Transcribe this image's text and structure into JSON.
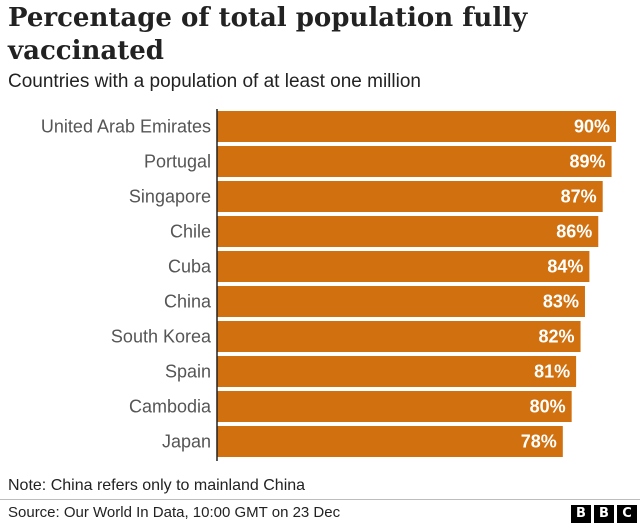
{
  "header": {
    "title": "Percentage of total population fully vaccinated",
    "subtitle": "Countries with a population of at least one million"
  },
  "colors": {
    "bar": "#d1700e",
    "label_country": "#555555",
    "label_value": "#ffffff",
    "axis": "#222222"
  },
  "chart_data": {
    "type": "bar",
    "orientation": "horizontal",
    "title": "Percentage of total population fully vaccinated",
    "subtitle": "Countries with a population of at least one million",
    "categories": [
      "United Arab Emirates",
      "Portugal",
      "Singapore",
      "Chile",
      "Cuba",
      "China",
      "South Korea",
      "Spain",
      "Cambodia",
      "Japan"
    ],
    "values": [
      90,
      89,
      87,
      86,
      84,
      83,
      82,
      81,
      80,
      78
    ],
    "value_labels": [
      "90%",
      "89%",
      "87%",
      "86%",
      "84%",
      "83%",
      "82%",
      "81%",
      "80%",
      "78%"
    ],
    "unit": "%",
    "xlim": [
      0,
      90
    ],
    "grid": false,
    "legend": "none"
  },
  "footer": {
    "note": "Note: China refers only to mainland China",
    "source": "Source: Our World In Data, 10:00 GMT on 23 Dec",
    "logo_letters": [
      "B",
      "B",
      "C"
    ]
  }
}
